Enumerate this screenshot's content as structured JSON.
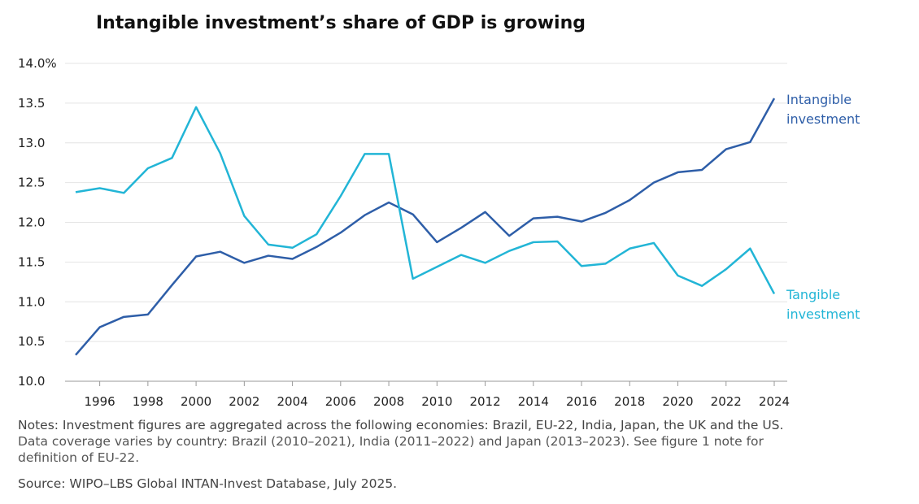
{
  "chart_data": {
    "type": "line",
    "title": "Intangible investment’s share of GDP is growing",
    "xlabel": "",
    "ylabel": "",
    "ylim": [
      10.0,
      14.0
    ],
    "xlim": [
      1995,
      2024
    ],
    "y_ticks": [
      "10.0",
      "10.5",
      "11.0",
      "11.5",
      "12.0",
      "12.5",
      "13.0",
      "13.5",
      "14.0%"
    ],
    "x_ticks": [
      "1996",
      "1998",
      "2000",
      "2002",
      "2004",
      "2006",
      "2008",
      "2010",
      "2012",
      "2014",
      "2016",
      "2018",
      "2020",
      "2022",
      "2024"
    ],
    "grid": true,
    "x": [
      1995,
      1996,
      1997,
      1998,
      1999,
      2000,
      2001,
      2002,
      2003,
      2004,
      2005,
      2006,
      2007,
      2008,
      2009,
      2010,
      2011,
      2012,
      2013,
      2014,
      2015,
      2016,
      2017,
      2018,
      2019,
      2020,
      2021,
      2022,
      2023,
      2024
    ],
    "series": [
      {
        "name": "Intangible investment",
        "label_lines": [
          "Intangible",
          "investment"
        ],
        "color": "#2e5ea8",
        "values": [
          10.33,
          10.68,
          10.81,
          10.84,
          11.21,
          11.57,
          11.63,
          11.49,
          11.58,
          11.54,
          11.69,
          11.87,
          12.09,
          12.25,
          12.1,
          11.75,
          11.93,
          12.13,
          11.83,
          12.05,
          12.07,
          12.01,
          12.12,
          12.28,
          12.5,
          12.63,
          12.66,
          12.92,
          13.01,
          13.56
        ]
      },
      {
        "name": "Tangible investment",
        "label_lines": [
          "Tangible",
          "investment"
        ],
        "color": "#22b5d6",
        "values": [
          12.38,
          12.43,
          12.37,
          12.68,
          12.81,
          13.45,
          12.87,
          12.08,
          11.72,
          11.68,
          11.85,
          12.33,
          12.86,
          12.86,
          11.29,
          11.44,
          11.59,
          11.49,
          11.64,
          11.75,
          11.76,
          11.45,
          11.48,
          11.67,
          11.74,
          11.33,
          11.2,
          11.41,
          11.67,
          11.1
        ]
      }
    ]
  },
  "notes": {
    "line1": "Notes: Investment figures are aggregated across the following economies: Brazil, EU-22, India, Japan, the UK and the US.",
    "line2": "Data coverage varies by country: Brazil (2010–2021), India (2011–2022) and Japan (2013–2023). See  figure 1 note for",
    "line3": "definition of EU-22.",
    "source": "Source: WIPO–LBS Global INTAN-Invest Database, July 2025."
  }
}
